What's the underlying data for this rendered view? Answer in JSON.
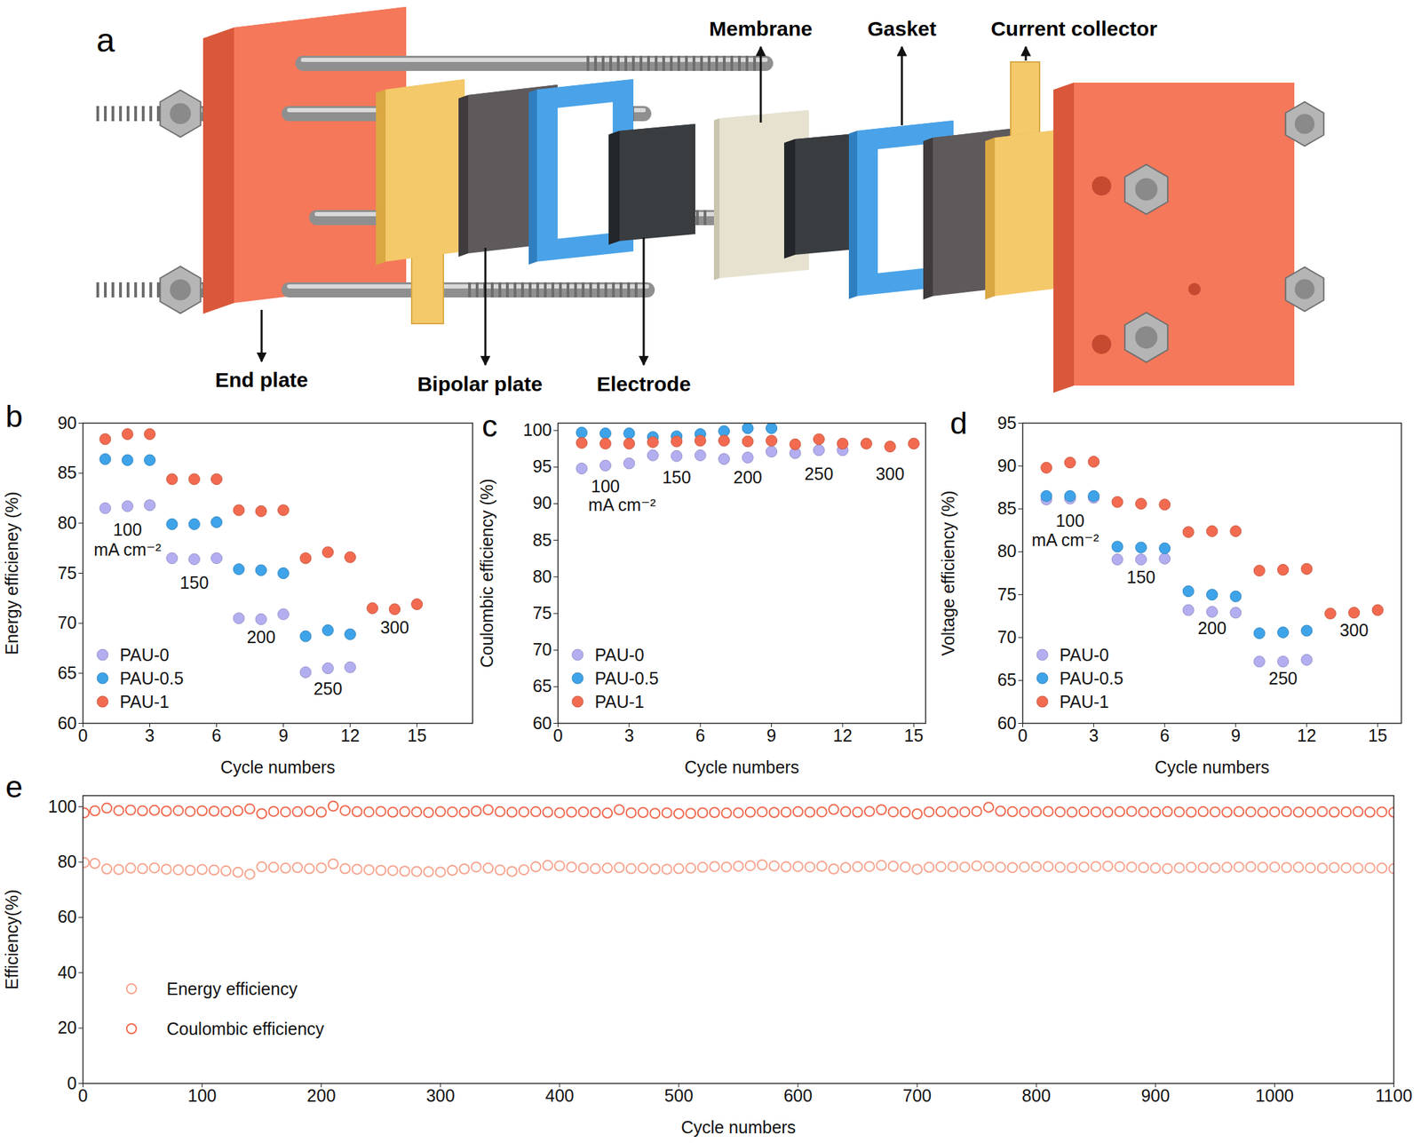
{
  "diagram": {
    "panel_label": "a",
    "labels": {
      "membrane": "Membrane",
      "gasket": "Gasket",
      "current_collector": "Current collector",
      "end_plate": "End plate",
      "bipolar_plate": "Bipolar plate",
      "electrode": "Electrode"
    }
  },
  "chart_data": [
    {
      "panel_label": "b",
      "type": "scatter",
      "x_label": "Cycle numbers",
      "y_label": "Energy efficieney (%)",
      "x": [
        1,
        2,
        3,
        4,
        5,
        6,
        7,
        8,
        9,
        10,
        11,
        12,
        13,
        14,
        15
      ],
      "series": [
        {
          "name": "PAU-0",
          "color": "#b3aef0",
          "values": [
            81.5,
            81.7,
            81.8,
            76.5,
            76.4,
            76.5,
            70.5,
            70.4,
            70.9,
            65.1,
            65.5,
            65.6,
            null,
            null,
            null
          ]
        },
        {
          "name": "PAU-0.5",
          "color": "#3ea3e8",
          "values": [
            86.4,
            86.3,
            86.3,
            79.9,
            79.9,
            80.1,
            75.4,
            75.3,
            75.0,
            68.7,
            69.3,
            68.9,
            null,
            null,
            null
          ]
        },
        {
          "name": "PAU-1",
          "color": "#f26b50",
          "values": [
            88.4,
            88.9,
            88.9,
            84.4,
            84.4,
            84.4,
            81.3,
            81.2,
            81.3,
            76.5,
            77.1,
            76.6,
            71.5,
            71.4,
            71.9
          ]
        }
      ],
      "xlim": [
        0,
        17.5
      ],
      "xticks": [
        0,
        3,
        6,
        9,
        12,
        15
      ],
      "ylim": [
        60,
        90
      ],
      "yticks": [
        60,
        65,
        70,
        75,
        80,
        85,
        90
      ],
      "grid": false,
      "legend": "lower left",
      "marker": "circle",
      "annotations": [
        {
          "text": "100",
          "x": 2,
          "y": 79.3
        },
        {
          "text": "mA cm⁻²",
          "x": 2,
          "y": 77.3
        },
        {
          "text": "150",
          "x": 5,
          "y": 74
        },
        {
          "text": "200",
          "x": 8,
          "y": 68.6
        },
        {
          "text": "250",
          "x": 11,
          "y": 63.4
        },
        {
          "text": "300",
          "x": 14,
          "y": 69.5
        }
      ]
    },
    {
      "panel_label": "c",
      "type": "scatter",
      "x_label": "Cycle numbers",
      "y_label": "Coulombic efficiency (%)",
      "x": [
        1,
        2,
        3,
        4,
        5,
        6,
        7,
        8,
        9,
        10,
        11,
        12,
        13,
        14,
        15
      ],
      "series": [
        {
          "name": "PAU-0",
          "color": "#b3aef0",
          "values": [
            94.8,
            95.2,
            95.5,
            96.6,
            96.5,
            96.6,
            96.1,
            96.3,
            97.1,
            96.9,
            97.3,
            97.3,
            null,
            null,
            null
          ]
        },
        {
          "name": "PAU-0.5",
          "color": "#3ea3e8",
          "values": [
            99.7,
            99.6,
            99.6,
            99.1,
            99.2,
            99.5,
            99.9,
            100.3,
            100.3,
            null,
            null,
            null,
            null,
            null,
            null
          ]
        },
        {
          "name": "PAU-1",
          "color": "#f26b50",
          "values": [
            98.3,
            98.2,
            98.2,
            98.4,
            98.5,
            98.6,
            98.6,
            98.5,
            98.6,
            98.1,
            98.8,
            98.2,
            98.2,
            97.8,
            98.2
          ]
        }
      ],
      "xlim": [
        0,
        15.5
      ],
      "xticks": [
        0,
        3,
        6,
        9,
        12,
        15
      ],
      "ylim": [
        60,
        101
      ],
      "yticks": [
        60,
        65,
        70,
        75,
        80,
        85,
        90,
        95,
        100
      ],
      "grid": false,
      "legend": "lower left",
      "marker": "circle",
      "annotations": [
        {
          "text": "100",
          "x": 2,
          "y": 92.3
        },
        {
          "text": "mA cm⁻²",
          "x": 2.7,
          "y": 89.8
        },
        {
          "text": "150",
          "x": 5,
          "y": 93.5
        },
        {
          "text": "200",
          "x": 8,
          "y": 93.5
        },
        {
          "text": "250",
          "x": 11,
          "y": 94
        },
        {
          "text": "300",
          "x": 14,
          "y": 94
        }
      ]
    },
    {
      "panel_label": "d",
      "type": "scatter",
      "x_label": "Cycle numbers",
      "y_label": "Voltage efficiency (%)",
      "x": [
        1,
        2,
        3,
        4,
        5,
        6,
        7,
        8,
        9,
        10,
        11,
        12,
        13,
        14,
        15
      ],
      "series": [
        {
          "name": "PAU-0",
          "color": "#b3aef0",
          "values": [
            86.1,
            86.2,
            86.3,
            79.1,
            79.1,
            79.2,
            73.2,
            73.0,
            72.9,
            67.2,
            67.2,
            67.4,
            null,
            null,
            null
          ]
        },
        {
          "name": "PAU-0.5",
          "color": "#3ea3e8",
          "values": [
            86.5,
            86.5,
            86.5,
            80.6,
            80.5,
            80.4,
            75.4,
            75.0,
            74.8,
            70.5,
            70.6,
            70.8,
            null,
            null,
            null
          ]
        },
        {
          "name": "PAU-1",
          "color": "#f26b50",
          "values": [
            89.8,
            90.4,
            90.5,
            85.8,
            85.6,
            85.5,
            82.3,
            82.4,
            82.4,
            77.8,
            77.9,
            78.0,
            72.8,
            72.9,
            73.2
          ]
        }
      ],
      "xlim": [
        0,
        16
      ],
      "xticks": [
        0,
        3,
        6,
        9,
        12,
        15
      ],
      "ylim": [
        60,
        95
      ],
      "yticks": [
        60,
        65,
        70,
        75,
        80,
        85,
        90,
        95
      ],
      "grid": false,
      "legend": "lower left",
      "marker": "circle",
      "annotations": [
        {
          "text": "100",
          "x": 2,
          "y": 83.6
        },
        {
          "text": "mA cm⁻²",
          "x": 1.8,
          "y": 81.3
        },
        {
          "text": "150",
          "x": 5,
          "y": 77
        },
        {
          "text": "200",
          "x": 8,
          "y": 71
        },
        {
          "text": "250",
          "x": 11,
          "y": 65.2
        },
        {
          "text": "300",
          "x": 14,
          "y": 70.8
        }
      ]
    },
    {
      "panel_label": "e",
      "type": "scatter",
      "x_label": "Cycle numbers",
      "y_label": "Efficiency(%)",
      "x": [
        1,
        10,
        20,
        30,
        40,
        50,
        60,
        70,
        80,
        90,
        100,
        110,
        120,
        130,
        140,
        150,
        160,
        170,
        180,
        190,
        200,
        210,
        220,
        230,
        240,
        250,
        260,
        270,
        280,
        290,
        300,
        310,
        320,
        330,
        340,
        350,
        360,
        370,
        380,
        390,
        400,
        410,
        420,
        430,
        440,
        450,
        460,
        470,
        480,
        490,
        500,
        510,
        520,
        530,
        540,
        550,
        560,
        570,
        580,
        590,
        600,
        610,
        620,
        630,
        640,
        650,
        660,
        670,
        680,
        690,
        700,
        710,
        720,
        730,
        740,
        750,
        760,
        770,
        780,
        790,
        800,
        810,
        820,
        830,
        840,
        850,
        860,
        870,
        880,
        890,
        900,
        910,
        920,
        930,
        940,
        950,
        960,
        970,
        980,
        990,
        1000,
        1010,
        1020,
        1030,
        1040,
        1050,
        1060,
        1070,
        1080,
        1090,
        1100
      ],
      "series": [
        {
          "name": "Energy efficiency",
          "color": "#f7a48e",
          "values": [
            79.8,
            79.5,
            77.5,
            77.3,
            77.8,
            77.6,
            77.9,
            77.4,
            77.2,
            77.0,
            77.3,
            77.1,
            76.8,
            76.3,
            75.6,
            78.3,
            78.1,
            77.8,
            78.0,
            77.6,
            77.9,
            79.3,
            77.6,
            77.4,
            77.2,
            77.0,
            76.9,
            76.7,
            76.6,
            76.5,
            76.4,
            77.0,
            77.5,
            78.2,
            77.8,
            77.1,
            76.6,
            77.2,
            78.3,
            78.8,
            78.6,
            78.2,
            77.9,
            77.6,
            77.8,
            78.0,
            77.6,
            77.8,
            77.5,
            77.4,
            77.6,
            77.8,
            78.1,
            78.4,
            78.2,
            78.5,
            78.7,
            79.0,
            78.6,
            78.3,
            78.4,
            78.2,
            78.5,
            77.5,
            78.0,
            78.3,
            78.4,
            78.8,
            78.5,
            78.2,
            77.4,
            78.1,
            78.3,
            78.4,
            78.2,
            78.6,
            78.3,
            78.1,
            78.0,
            78.2,
            78.3,
            78.4,
            78.1,
            78.0,
            78.2,
            78.4,
            78.5,
            78.3,
            78.2,
            78.0,
            77.8,
            77.6,
            77.9,
            78.1,
            78.0,
            77.9,
            78.1,
            78.2,
            78.3,
            78.1,
            78.2,
            78.0,
            78.1,
            77.9,
            77.8,
            78.0,
            77.9,
            77.8,
            77.9,
            77.8,
            77.6
          ]
        },
        {
          "name": "Coulombic efficiency",
          "color": "#f0694e",
          "values": [
            97.8,
            98.5,
            99.5,
            98.6,
            98.8,
            98.5,
            98.7,
            98.4,
            98.6,
            98.3,
            98.5,
            98.4,
            98.2,
            98.5,
            99.2,
            97.5,
            98.3,
            98.1,
            98.2,
            98.4,
            98.0,
            100.2,
            98.6,
            98.2,
            98.1,
            98.3,
            98.0,
            98.2,
            98.1,
            97.9,
            98.2,
            98.1,
            98.0,
            98.4,
            98.9,
            98.2,
            98.0,
            98.1,
            98.2,
            98.0,
            97.8,
            98.0,
            98.1,
            97.9,
            97.7,
            98.9,
            97.8,
            97.9,
            97.6,
            97.8,
            97.5,
            97.6,
            97.8,
            97.9,
            97.7,
            97.8,
            98.0,
            98.1,
            97.9,
            98.0,
            98.2,
            98.0,
            98.1,
            99.0,
            98.2,
            98.0,
            98.3,
            98.9,
            98.1,
            98.0,
            97.4,
            98.1,
            98.2,
            98.0,
            98.1,
            98.3,
            99.8,
            98.4,
            98.2,
            98.1,
            98.2,
            98.3,
            98.1,
            98.0,
            98.2,
            98.1,
            98.0,
            98.2,
            98.3,
            98.1,
            98.0,
            98.2,
            98.1,
            98.0,
            98.2,
            98.1,
            98.0,
            98.2,
            98.1,
            98.0,
            98.1,
            98.2,
            98.0,
            98.1,
            98.2,
            98.0,
            98.1,
            98.2,
            98.0,
            98.1,
            98.0
          ]
        }
      ],
      "xlim": [
        0,
        1100
      ],
      "xticks": [
        0,
        100,
        200,
        300,
        400,
        500,
        600,
        700,
        800,
        900,
        1000,
        1100
      ],
      "ylim": [
        0,
        104
      ],
      "yticks": [
        0,
        20,
        40,
        60,
        80,
        100
      ],
      "grid": false,
      "legend": "lower left",
      "marker": "open circle"
    }
  ]
}
